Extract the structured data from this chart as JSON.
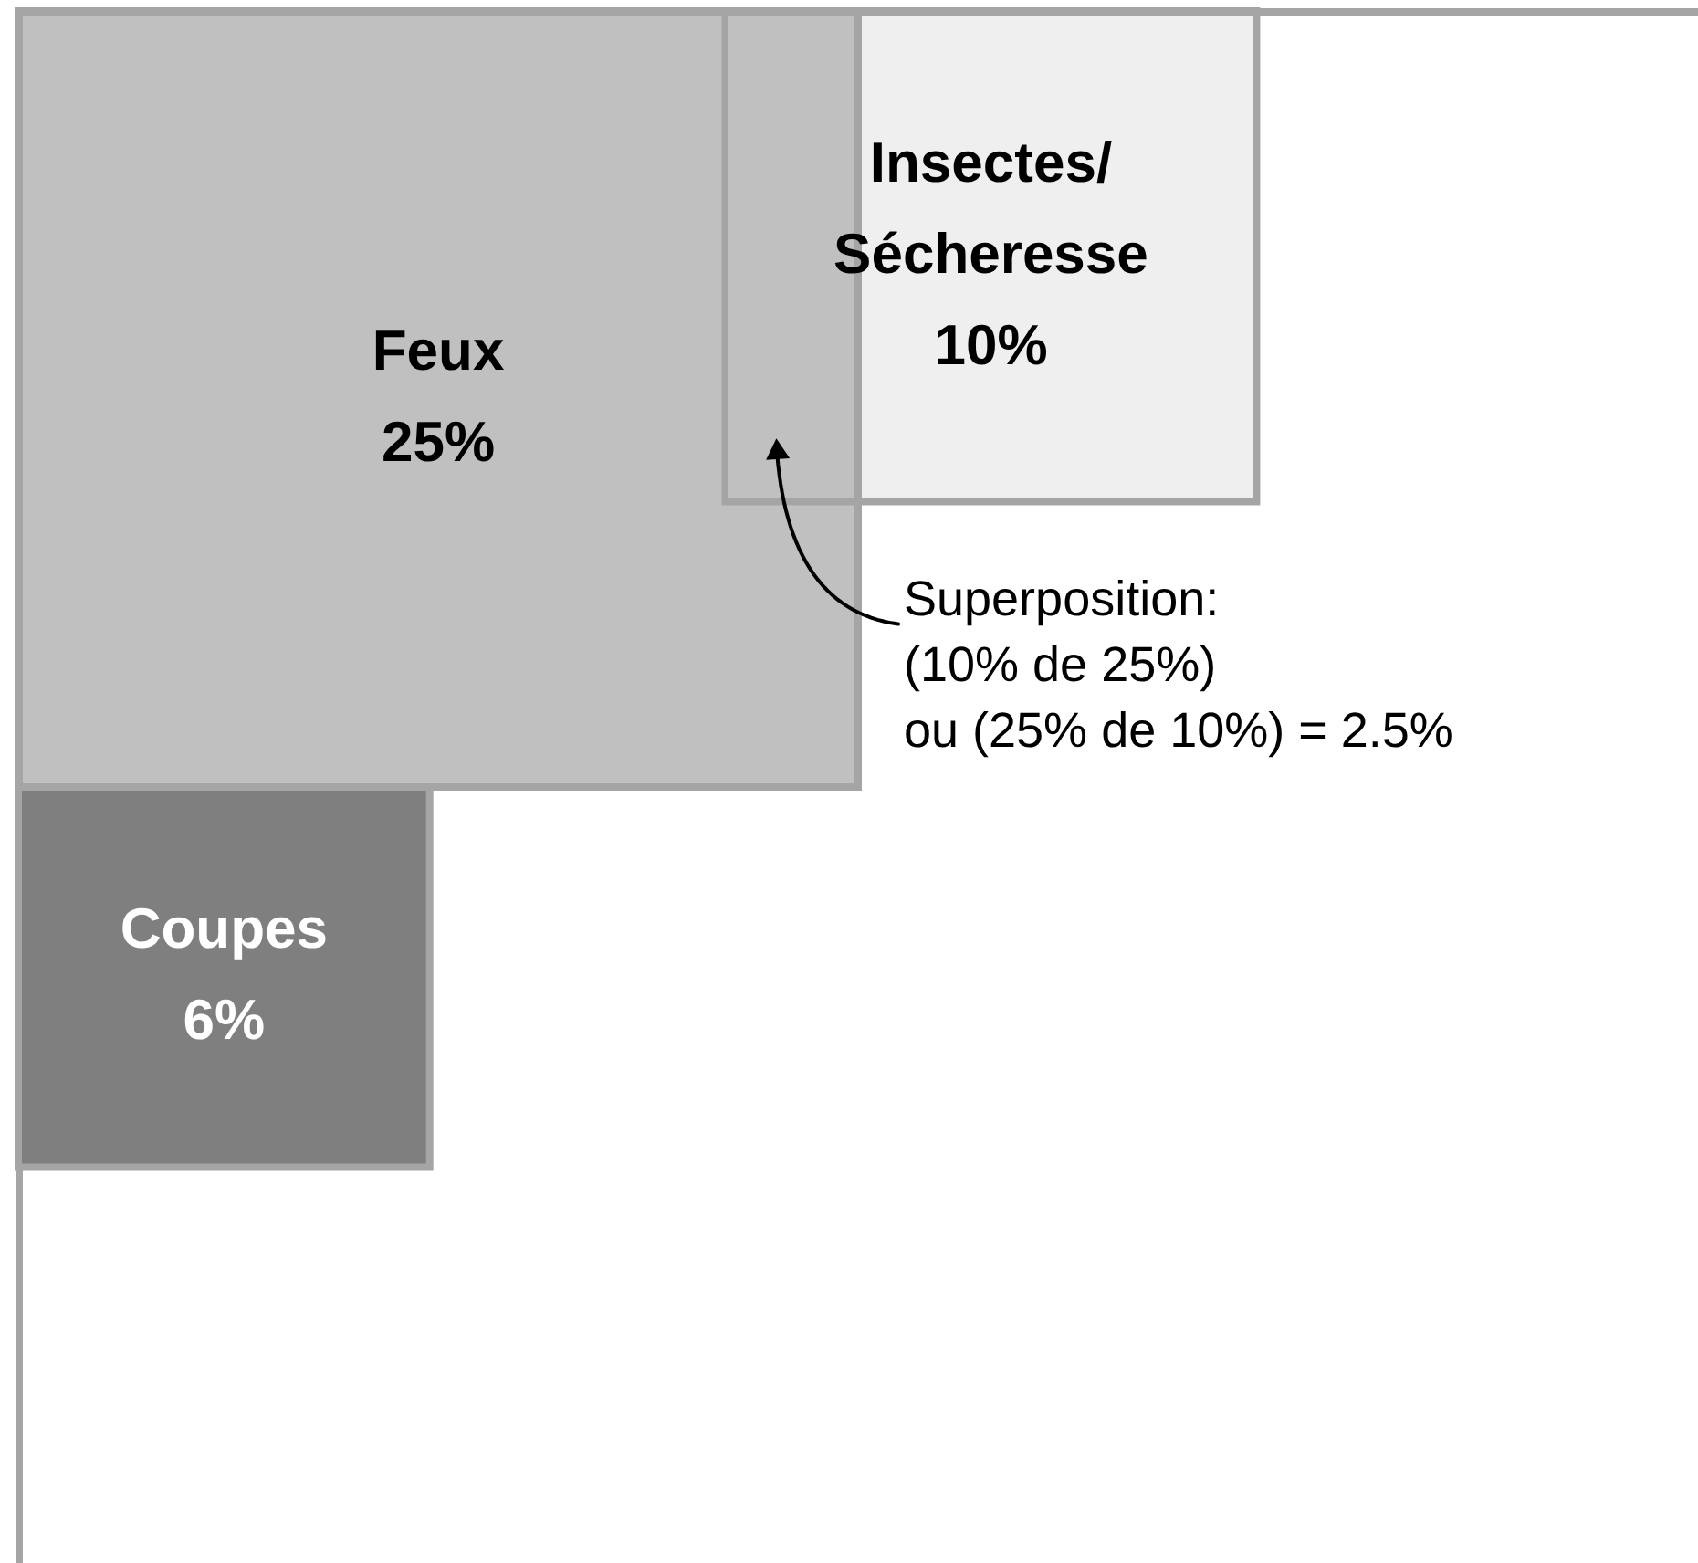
{
  "chart_data": {
    "type": "other",
    "categories": [
      "Feux",
      "Insectes/\nSécheresse",
      "Coupes"
    ],
    "values": [
      25,
      10,
      6
    ],
    "colors": [
      "#c0c0c0",
      "#efefef",
      "#7f7f7f"
    ],
    "value_labels": [
      "25%",
      "10%",
      "6%"
    ],
    "annotations": [
      "Superposition:\n(10% de 25%)\nou (25% de 10%) = 2.5%"
    ]
  }
}
